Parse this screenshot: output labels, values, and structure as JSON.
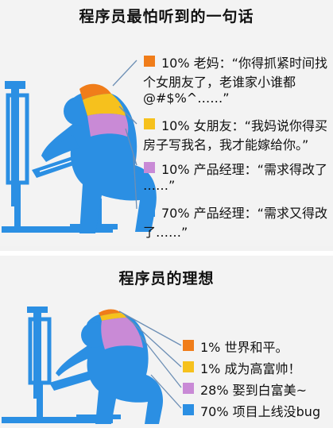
{
  "panel1": {
    "title": "程序员最怕听到的一句话",
    "items": [
      {
        "color": "#f07d1a",
        "lines": [
          "10% 老妈：“你得抓紧时间找",
          "个女朋友了，老谁家小谁都",
          "@#$%^……”"
        ]
      },
      {
        "color": "#f6c11d",
        "lines": [
          "10% 女朋友：“我妈说你得买",
          "房子写我名，我才能嫁给你。”"
        ]
      },
      {
        "color": "#c98ad6",
        "lines": [
          "10% 产品经理：“需求得改了",
          "……”"
        ]
      },
      {
        "color": "#2b8fe3",
        "lines": [
          "70% 产品经理：“需求又得改",
          "了……”"
        ]
      }
    ]
  },
  "panel2": {
    "title": "程序员的理想",
    "items": [
      {
        "color": "#f07d1a",
        "lines": [
          "1% 世界和平。"
        ]
      },
      {
        "color": "#f6c11d",
        "lines": [
          "1% 成为高富帅！"
        ]
      },
      {
        "color": "#c98ad6",
        "lines": [
          "28% 娶到白富美~"
        ]
      },
      {
        "color": "#2b8fe3",
        "lines": [
          "70% 项目上线没bug"
        ]
      }
    ]
  },
  "colors": {
    "figure_blue": "#2b8fe3",
    "orange": "#f07d1a",
    "yellow": "#f6c11d",
    "purple": "#c98ad6",
    "leader_line": "#6d8fb5"
  }
}
